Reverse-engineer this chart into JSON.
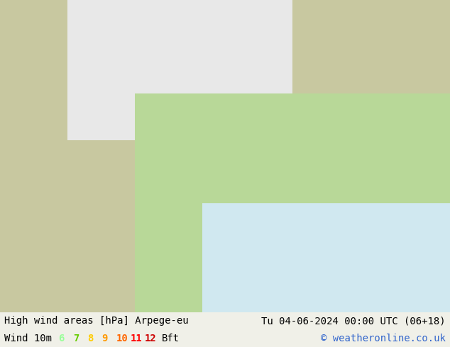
{
  "title_left": "High wind areas [hPa] Arpege-eu",
  "title_right": "Tu 04-06-2024 00:00 UTC (06+18)",
  "subtitle_label": "Wind 10m",
  "bft_label": "Bft",
  "copyright": "© weatheronline.co.uk",
  "bft_values": [
    "6",
    "7",
    "8",
    "9",
    "10",
    "11",
    "12"
  ],
  "bft_colors": [
    "#99ff99",
    "#66cc00",
    "#ffcc00",
    "#ff9900",
    "#ff6600",
    "#ff0000",
    "#cc0000"
  ],
  "bg_color": "#f0f0e8",
  "map_bg": "#c8d8a0",
  "bottom_bar_color": "#e8e8e8",
  "bottom_bar_height": 0.1,
  "figsize": [
    6.34,
    4.9
  ],
  "dpi": 100,
  "title_fontsize": 10,
  "subtitle_fontsize": 10,
  "bft_fontsize": 10
}
